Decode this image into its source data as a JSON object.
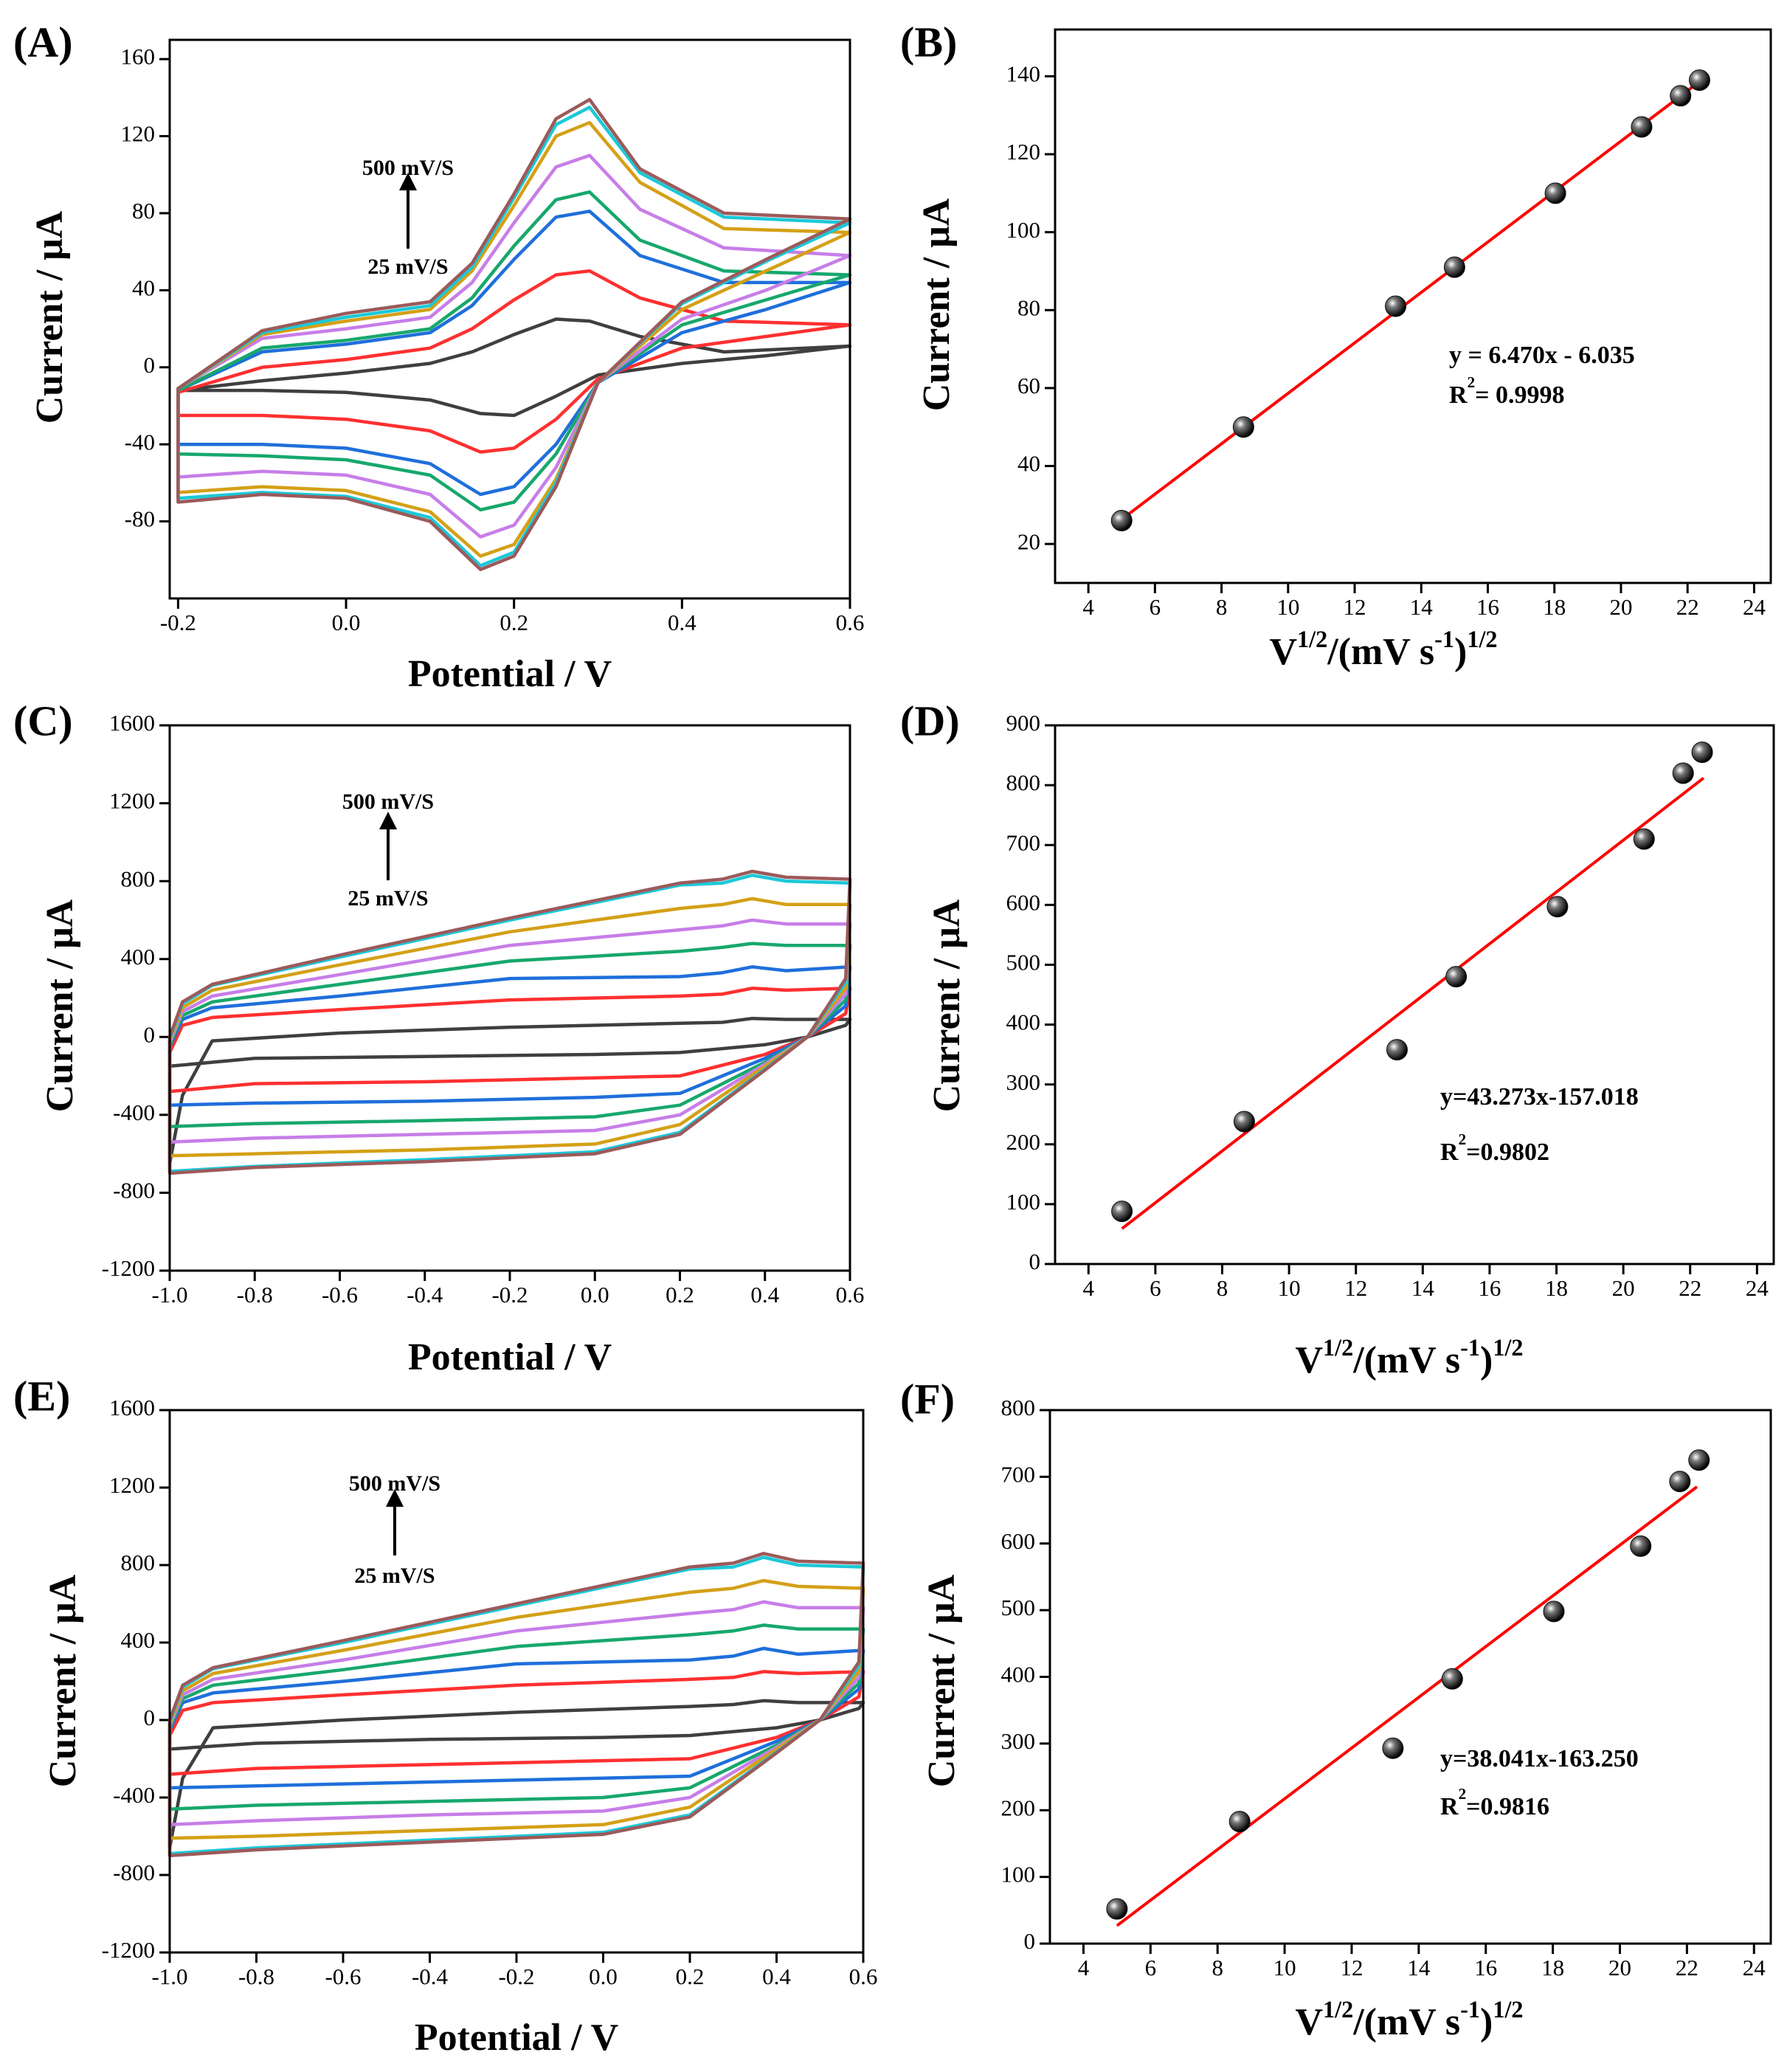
{
  "chart_data": [
    {
      "type": "line",
      "panel_label": "(A)",
      "y_label": "Current / μA",
      "x_label": "Potential / V",
      "annotations": [
        "500 mV/S",
        "25 mV/S"
      ],
      "xlim": [
        -0.21,
        0.6
      ],
      "xticks": [
        -0.2,
        {
          "value": 0,
          "label": "0.0"
        },
        0.2,
        0.4,
        0.6
      ],
      "ylim": [
        -120,
        170
      ],
      "yticks": [
        -80,
        -40,
        0,
        40,
        80,
        120,
        160
      ],
      "x": [
        -0.2,
        -0.1,
        0,
        0.1,
        0.15,
        0.2,
        0.25,
        0.29,
        0.35,
        0.45,
        0.6,
        0.5,
        0.4,
        0.3,
        0.25,
        0.2,
        0.16,
        0.1,
        0,
        -0.1,
        -0.2
      ],
      "series": [
        {
          "color": "#3f3f3f",
          "values": [
            -12,
            -7,
            -3,
            2,
            8,
            17,
            25,
            24,
            16,
            8,
            11,
            6,
            2,
            -4,
            -15,
            -25,
            -24,
            -17,
            -13,
            -12,
            -12
          ]
        },
        {
          "color": "#ff3030",
          "values": [
            -13,
            0,
            4,
            10,
            20,
            35,
            48,
            50,
            36,
            24,
            22,
            16,
            10,
            -6,
            -27,
            -42,
            -44,
            -33,
            -27,
            -25,
            -25
          ]
        },
        {
          "color": "#1f6fdb",
          "values": [
            -12,
            8,
            12,
            18,
            32,
            56,
            78,
            81,
            58,
            44,
            44,
            30,
            18,
            -8,
            -40,
            -62,
            -66,
            -50,
            -42,
            -40,
            -40
          ]
        },
        {
          "color": "#17a86b",
          "values": [
            -12,
            10,
            14,
            20,
            36,
            63,
            87,
            91,
            66,
            50,
            48,
            35,
            22,
            -8,
            -45,
            -70,
            -74,
            -56,
            -48,
            -46,
            -45
          ]
        },
        {
          "color": "#c77ee8",
          "values": [
            -11,
            15,
            20,
            26,
            44,
            75,
            104,
            110,
            82,
            62,
            58,
            40,
            25,
            -8,
            -52,
            -82,
            -88,
            -66,
            -56,
            -54,
            -57
          ]
        },
        {
          "color": "#d4a017",
          "values": [
            -11,
            17,
            24,
            30,
            50,
            84,
            120,
            127,
            96,
            72,
            70,
            50,
            30,
            -8,
            -58,
            -92,
            -98,
            -75,
            -64,
            -62,
            -65
          ]
        },
        {
          "color": "#1cc8d8",
          "values": [
            -11,
            18,
            26,
            32,
            52,
            88,
            126,
            135,
            101,
            78,
            75,
            55,
            33,
            -8,
            -60,
            -96,
            -103,
            -78,
            -67,
            -65,
            -68
          ]
        },
        {
          "color": "#9c5a5a",
          "values": [
            -11,
            19,
            28,
            34,
            54,
            90,
            129,
            139,
            103,
            80,
            77,
            56,
            34,
            -8,
            -62,
            -98,
            -105,
            -80,
            -68,
            -66,
            -70
          ]
        }
      ]
    },
    {
      "type": "scatter",
      "panel_label": "(B)",
      "y_label": "Current / μA",
      "x_label": [
        "V",
        "1/2",
        "/(mV s",
        "-1",
        ")",
        "1/2"
      ],
      "equation": "y = 6.470x - 6.035",
      "r_squared": [
        "R",
        "2",
        "= 0.9998"
      ],
      "xlim": [
        3,
        24.5
      ],
      "xticks": [
        4,
        6,
        8,
        10,
        12,
        14,
        16,
        18,
        20,
        22,
        24
      ],
      "ylim": [
        10,
        152
      ],
      "yticks": [
        20,
        40,
        60,
        80,
        100,
        120,
        140
      ],
      "series": [
        {
          "color": "#111111",
          "x": [
            5,
            8.66,
            13.23,
            15,
            18.03,
            20.62,
            21.79,
            22.36
          ],
          "values": [
            26,
            50,
            81,
            91,
            110,
            127,
            135,
            139
          ]
        },
        {
          "color": "#ff0000",
          "line": true,
          "x": [
            5,
            22.4
          ],
          "values": [
            26.3,
            138.9
          ]
        }
      ]
    },
    {
      "type": "line",
      "panel_label": "(C)",
      "y_label": "Current / μA",
      "x_label": "Potential / V",
      "annotations": [
        "500 mV/S",
        "25 mV/S"
      ],
      "xlim": [
        -1.0,
        0.6
      ],
      "xticks": [
        {
          "value": -1,
          "label": "-1.0"
        },
        -0.8,
        -0.6,
        -0.4,
        -0.2,
        {
          "value": 0,
          "label": "0.0"
        },
        0.2,
        0.4,
        0.6
      ],
      "ylim": [
        -1200,
        1600
      ],
      "yticks": [
        -1200,
        -800,
        -400,
        0,
        400,
        800,
        1200,
        1600
      ],
      "x": [
        -1.0,
        -0.97,
        -0.9,
        -0.6,
        -0.2,
        0.2,
        0.3,
        0.37,
        0.45,
        0.6,
        0.59,
        0.5,
        0.4,
        0.2,
        0,
        -0.4,
        -0.8,
        -1.0
      ],
      "series": [
        {
          "color": "#3f3f3f",
          "values": [
            -650,
            -300,
            -20,
            20,
            50,
            70,
            75,
            95,
            90,
            90,
            60,
            0,
            -40,
            -80,
            -90,
            -100,
            -110,
            -150
          ]
        },
        {
          "color": "#ff3030",
          "values": [
            -80,
            60,
            100,
            140,
            190,
            210,
            220,
            250,
            240,
            250,
            120,
            0,
            -90,
            -200,
            -210,
            -230,
            -240,
            -280
          ]
        },
        {
          "color": "#1f6fdb",
          "values": [
            -50,
            90,
            150,
            210,
            300,
            310,
            330,
            360,
            340,
            360,
            160,
            0,
            -110,
            -290,
            -310,
            -330,
            -340,
            -350
          ]
        },
        {
          "color": "#17a86b",
          "values": [
            -40,
            110,
            180,
            270,
            390,
            440,
            460,
            480,
            470,
            470,
            190,
            0,
            -130,
            -350,
            -410,
            -430,
            -445,
            -460
          ]
        },
        {
          "color": "#c77ee8",
          "values": [
            -30,
            130,
            210,
            320,
            470,
            550,
            570,
            600,
            580,
            580,
            220,
            0,
            -140,
            -400,
            -480,
            -500,
            -520,
            -540
          ]
        },
        {
          "color": "#d4a017",
          "values": [
            -20,
            150,
            240,
            370,
            540,
            660,
            680,
            710,
            680,
            680,
            250,
            0,
            -150,
            -450,
            -550,
            -580,
            -600,
            -610
          ]
        },
        {
          "color": "#1cc8d8",
          "values": [
            -10,
            170,
            265,
            410,
            600,
            780,
            790,
            830,
            800,
            790,
            280,
            0,
            -165,
            -490,
            -590,
            -630,
            -665,
            -690
          ]
        },
        {
          "color": "#9c5a5a",
          "values": [
            0,
            180,
            270,
            420,
            610,
            790,
            810,
            850,
            820,
            810,
            300,
            0,
            -170,
            -500,
            -600,
            -640,
            -670,
            -700
          ]
        }
      ]
    },
    {
      "type": "scatter",
      "panel_label": "(D)",
      "y_label": "Current / μA",
      "x_label": [
        "V",
        "1/2",
        "/(mV  s",
        "-1",
        ")",
        "1/2"
      ],
      "equation": "y=43.273x-157.018",
      "r_squared": [
        "R",
        "2",
        "=0.9802"
      ],
      "xlim": [
        3,
        24.5
      ],
      "xticks": [
        4,
        6,
        8,
        10,
        12,
        14,
        16,
        18,
        20,
        22,
        24
      ],
      "ylim": [
        0,
        900
      ],
      "yticks": [
        0,
        100,
        200,
        300,
        400,
        500,
        600,
        700,
        800,
        900
      ],
      "series": [
        {
          "color": "#111111",
          "x": [
            5,
            8.66,
            13.23,
            15,
            18.03,
            20.62,
            21.79,
            22.36
          ],
          "values": [
            88,
            238,
            358,
            480,
            597,
            710,
            820,
            855
          ]
        },
        {
          "color": "#ff0000",
          "line": true,
          "x": [
            5,
            22.4
          ],
          "values": [
            59,
            812
          ]
        }
      ]
    },
    {
      "type": "line",
      "panel_label": "(E)",
      "y_label": "Current / μA",
      "x_label": "Potential / V",
      "annotations": [
        "500 mV/S",
        "25 mV/S"
      ],
      "xlim": [
        -1.0,
        0.6
      ],
      "xticks": [
        {
          "value": -1,
          "label": "-1.0"
        },
        -0.8,
        -0.6,
        -0.4,
        -0.2,
        {
          "value": 0,
          "label": "0.0"
        },
        0.2,
        0.4,
        0.6
      ],
      "ylim": [
        -1200,
        1600
      ],
      "yticks": [
        -1200,
        -800,
        -400,
        0,
        400,
        800,
        1200,
        1600
      ],
      "x": [
        -1.0,
        -0.97,
        -0.9,
        -0.6,
        -0.2,
        0.2,
        0.3,
        0.37,
        0.45,
        0.6,
        0.59,
        0.5,
        0.4,
        0.2,
        0,
        -0.4,
        -0.8,
        -1.0
      ],
      "series": [
        {
          "color": "#3f3f3f",
          "values": [
            -660,
            -300,
            -40,
            0,
            40,
            70,
            80,
            100,
            90,
            90,
            60,
            0,
            -40,
            -80,
            -90,
            -100,
            -120,
            -150
          ]
        },
        {
          "color": "#ff3030",
          "values": [
            -80,
            50,
            90,
            130,
            180,
            210,
            220,
            250,
            240,
            250,
            120,
            0,
            -90,
            -200,
            -210,
            -230,
            -250,
            -280
          ]
        },
        {
          "color": "#1f6fdb",
          "values": [
            -50,
            90,
            140,
            200,
            290,
            310,
            330,
            370,
            340,
            360,
            160,
            0,
            -110,
            -290,
            -300,
            -320,
            -340,
            -350
          ]
        },
        {
          "color": "#17a86b",
          "values": [
            -40,
            110,
            180,
            260,
            380,
            440,
            460,
            490,
            470,
            470,
            190,
            0,
            -130,
            -350,
            -400,
            -420,
            -440,
            -460
          ]
        },
        {
          "color": "#c77ee8",
          "values": [
            -30,
            130,
            210,
            310,
            460,
            550,
            570,
            610,
            580,
            580,
            220,
            0,
            -140,
            -400,
            -470,
            -490,
            -520,
            -540
          ]
        },
        {
          "color": "#d4a017",
          "values": [
            -20,
            150,
            240,
            360,
            530,
            660,
            680,
            720,
            690,
            680,
            250,
            0,
            -150,
            -450,
            -540,
            -570,
            -600,
            -610
          ]
        },
        {
          "color": "#1cc8d8",
          "values": [
            -10,
            170,
            265,
            400,
            590,
            780,
            790,
            840,
            800,
            790,
            280,
            0,
            -165,
            -490,
            -580,
            -620,
            -660,
            -690
          ]
        },
        {
          "color": "#9c5a5a",
          "values": [
            0,
            180,
            270,
            410,
            600,
            790,
            810,
            860,
            820,
            810,
            300,
            0,
            -170,
            -500,
            -590,
            -630,
            -670,
            -700
          ]
        }
      ]
    },
    {
      "type": "scatter",
      "panel_label": "(F)",
      "y_label": "Current / μA",
      "x_label": [
        "V",
        "1/2",
        "/(mV s",
        "-1",
        ")",
        "1/2"
      ],
      "equation": "y=38.041x-163.250",
      "r_squared": [
        "R",
        "2",
        "=0.9816"
      ],
      "xlim": [
        3,
        24.5
      ],
      "xticks": [
        4,
        6,
        8,
        10,
        12,
        14,
        16,
        18,
        20,
        22,
        24
      ],
      "ylim": [
        0,
        800
      ],
      "yticks": [
        0,
        100,
        200,
        300,
        400,
        500,
        600,
        700,
        800
      ],
      "series": [
        {
          "color": "#111111",
          "x": [
            5,
            8.66,
            13.23,
            15,
            18.03,
            20.62,
            21.79,
            22.36
          ],
          "values": [
            52,
            183,
            293,
            397,
            498,
            596,
            693,
            725
          ]
        },
        {
          "color": "#ff0000",
          "line": true,
          "x": [
            5,
            22.3
          ],
          "values": [
            27,
            685
          ]
        }
      ]
    }
  ]
}
